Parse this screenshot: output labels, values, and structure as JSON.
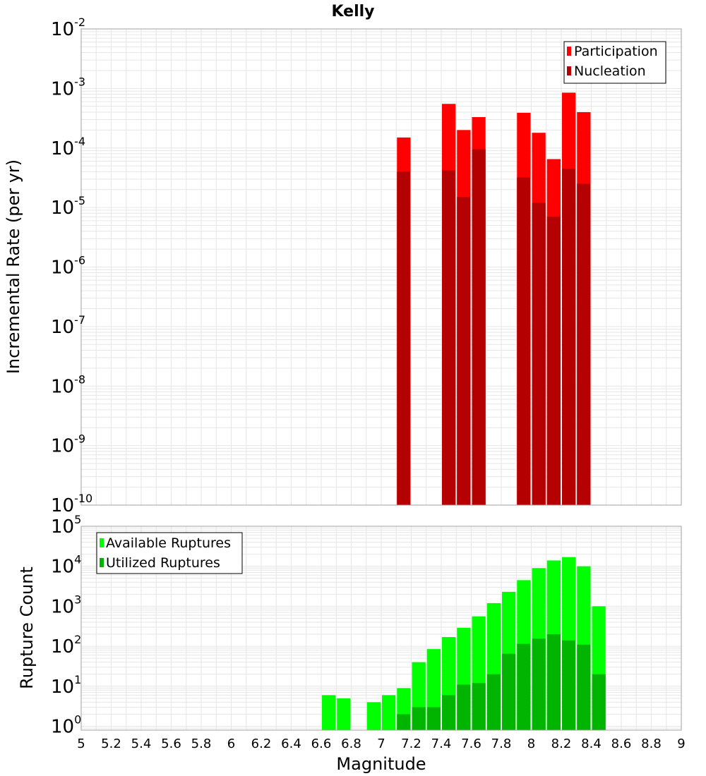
{
  "title": "Kelly",
  "colors": {
    "participation": "#ff0000",
    "nucleation": "#b40000",
    "available": "#00ff00",
    "utilized": "#00b400",
    "grid": "#e6e6e6",
    "frame": "#a0a0a0"
  },
  "chart_data": [
    {
      "type": "bar",
      "ylabel": "Incremental Rate (per yr)",
      "yscale": "log",
      "ylim": [
        1e-10,
        0.01
      ],
      "xlim": [
        5,
        9
      ],
      "legend_position": "top-right",
      "bin_width": 0.1,
      "series": [
        {
          "name": "Participation",
          "x": [
            7.15,
            7.45,
            7.55,
            7.65,
            7.95,
            8.05,
            8.15,
            8.25,
            8.35
          ],
          "values": [
            0.00015,
            0.00055,
            0.0002,
            0.00033,
            0.00039,
            0.00018,
            6.5e-05,
            0.00085,
            0.0004
          ]
        },
        {
          "name": "Nucleation",
          "x": [
            7.15,
            7.45,
            7.55,
            7.65,
            7.95,
            8.05,
            8.15,
            8.25,
            8.35
          ],
          "values": [
            4e-05,
            4.2e-05,
            1.5e-05,
            9.5e-05,
            3.2e-05,
            1.2e-05,
            7e-06,
            4.5e-05,
            2.5e-05
          ]
        }
      ]
    },
    {
      "type": "bar",
      "xlabel": "Magnitude",
      "ylabel": "Rupture Count",
      "yscale": "log",
      "ylim": [
        0.8,
        100000.0
      ],
      "xlim": [
        5,
        9
      ],
      "legend_position": "top-left",
      "bin_width": 0.1,
      "series": [
        {
          "name": "Available Ruptures",
          "x": [
            6.65,
            6.75,
            6.95,
            7.05,
            7.15,
            7.25,
            7.35,
            7.45,
            7.55,
            7.65,
            7.75,
            7.85,
            7.95,
            8.05,
            8.15,
            8.25,
            8.35,
            8.45
          ],
          "values": [
            6,
            5,
            4,
            6,
            9,
            40,
            85,
            170,
            290,
            560,
            1200,
            2300,
            4500,
            9000,
            14000,
            17000,
            10000,
            1000
          ]
        },
        {
          "name": "Utilized Ruptures",
          "x": [
            7.15,
            7.25,
            7.35,
            7.45,
            7.55,
            7.65,
            7.75,
            7.85,
            7.95,
            8.05,
            8.15,
            8.25,
            8.35,
            8.45
          ],
          "values": [
            2,
            3,
            3,
            6,
            11,
            12,
            20,
            65,
            115,
            155,
            200,
            140,
            110,
            20
          ]
        }
      ]
    }
  ],
  "x_ticks": [
    "5",
    "5.2",
    "5.4",
    "5.6",
    "5.8",
    "6",
    "6.2",
    "6.4",
    "6.6",
    "6.8",
    "7",
    "7.2",
    "7.4",
    "7.6",
    "7.8",
    "8",
    "8.2",
    "8.4",
    "8.6",
    "8.8",
    "9"
  ],
  "top_y_ticks": [
    {
      "base": "10",
      "exp": "-2"
    },
    {
      "base": "10",
      "exp": "-3"
    },
    {
      "base": "10",
      "exp": "-4"
    },
    {
      "base": "10",
      "exp": "-5"
    },
    {
      "base": "10",
      "exp": "-6"
    },
    {
      "base": "10",
      "exp": "-7"
    },
    {
      "base": "10",
      "exp": "-8"
    },
    {
      "base": "10",
      "exp": "-9"
    },
    {
      "base": "10",
      "exp": "-10"
    }
  ],
  "bottom_y_ticks": [
    {
      "base": "10",
      "exp": "5"
    },
    {
      "base": "10",
      "exp": "4"
    },
    {
      "base": "10",
      "exp": "3"
    },
    {
      "base": "10",
      "exp": "2"
    },
    {
      "base": "10",
      "exp": "1"
    },
    {
      "base": "10",
      "exp": "0"
    }
  ]
}
